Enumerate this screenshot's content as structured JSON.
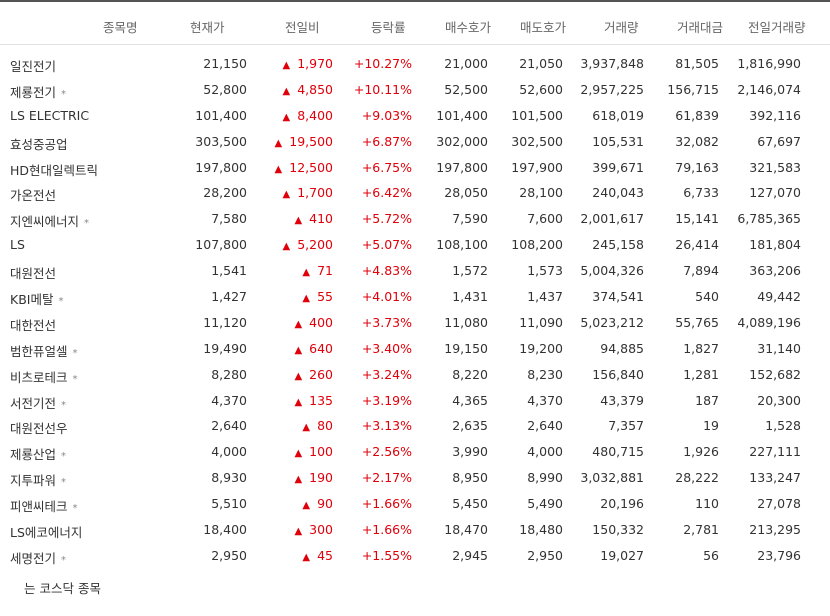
{
  "headers": {
    "name": "종목명",
    "price": "현재가",
    "change": "전일비",
    "rate": "등락률",
    "bid": "매수호가",
    "ask": "매도호가",
    "volume": "거래량",
    "amount": "거래대금",
    "prev_volume": "전일거래량"
  },
  "colors": {
    "up": "#e0000a"
  },
  "icons": {
    "up_arrow": "up-triangle-icon"
  },
  "rows": [
    {
      "name": "일진전기",
      "star": "",
      "price": "21,150",
      "change": "1,970",
      "rate": "+10.27%",
      "bid": "21,000",
      "ask": "21,050",
      "volume": "3,937,848",
      "amount": "81,505",
      "prev_volume": "1,816,990"
    },
    {
      "name": "제룡전기",
      "star": "*",
      "price": "52,800",
      "change": "4,850",
      "rate": "+10.11%",
      "bid": "52,500",
      "ask": "52,600",
      "volume": "2,957,225",
      "amount": "156,715",
      "prev_volume": "2,146,074"
    },
    {
      "name": "LS ELECTRIC",
      "star": "",
      "price": "101,400",
      "change": "8,400",
      "rate": "+9.03%",
      "bid": "101,400",
      "ask": "101,500",
      "volume": "618,019",
      "amount": "61,839",
      "prev_volume": "392,116"
    },
    {
      "name": "효성중공업",
      "star": "",
      "price": "303,500",
      "change": "19,500",
      "rate": "+6.87%",
      "bid": "302,000",
      "ask": "302,500",
      "volume": "105,531",
      "amount": "32,082",
      "prev_volume": "67,697"
    },
    {
      "name": "HD현대일렉트릭",
      "star": "",
      "price": "197,800",
      "change": "12,500",
      "rate": "+6.75%",
      "bid": "197,800",
      "ask": "197,900",
      "volume": "399,671",
      "amount": "79,163",
      "prev_volume": "321,583"
    },
    {
      "name": "가온전선",
      "star": "",
      "price": "28,200",
      "change": "1,700",
      "rate": "+6.42%",
      "bid": "28,050",
      "ask": "28,100",
      "volume": "240,043",
      "amount": "6,733",
      "prev_volume": "127,070"
    },
    {
      "name": "지엔씨에너지",
      "star": "*",
      "price": "7,580",
      "change": "410",
      "rate": "+5.72%",
      "bid": "7,590",
      "ask": "7,600",
      "volume": "2,001,617",
      "amount": "15,141",
      "prev_volume": "6,785,365"
    },
    {
      "name": "LS",
      "star": "",
      "price": "107,800",
      "change": "5,200",
      "rate": "+5.07%",
      "bid": "108,100",
      "ask": "108,200",
      "volume": "245,158",
      "amount": "26,414",
      "prev_volume": "181,804"
    },
    {
      "name": "대원전선",
      "star": "",
      "price": "1,541",
      "change": "71",
      "rate": "+4.83%",
      "bid": "1,572",
      "ask": "1,573",
      "volume": "5,004,326",
      "amount": "7,894",
      "prev_volume": "363,206"
    },
    {
      "name": "KBI메탈",
      "star": "*",
      "price": "1,427",
      "change": "55",
      "rate": "+4.01%",
      "bid": "1,431",
      "ask": "1,437",
      "volume": "374,541",
      "amount": "540",
      "prev_volume": "49,442"
    },
    {
      "name": "대한전선",
      "star": "",
      "price": "11,120",
      "change": "400",
      "rate": "+3.73%",
      "bid": "11,080",
      "ask": "11,090",
      "volume": "5,023,212",
      "amount": "55,765",
      "prev_volume": "4,089,196"
    },
    {
      "name": "범한퓨얼셀",
      "star": "*",
      "price": "19,490",
      "change": "640",
      "rate": "+3.40%",
      "bid": "19,150",
      "ask": "19,200",
      "volume": "94,885",
      "amount": "1,827",
      "prev_volume": "31,140"
    },
    {
      "name": "비츠로테크",
      "star": "*",
      "price": "8,280",
      "change": "260",
      "rate": "+3.24%",
      "bid": "8,220",
      "ask": "8,230",
      "volume": "156,840",
      "amount": "1,281",
      "prev_volume": "152,682"
    },
    {
      "name": "서전기전",
      "star": "*",
      "price": "4,370",
      "change": "135",
      "rate": "+3.19%",
      "bid": "4,365",
      "ask": "4,370",
      "volume": "43,379",
      "amount": "187",
      "prev_volume": "20,300"
    },
    {
      "name": "대원전선우",
      "star": "",
      "price": "2,640",
      "change": "80",
      "rate": "+3.13%",
      "bid": "2,635",
      "ask": "2,640",
      "volume": "7,357",
      "amount": "19",
      "prev_volume": "1,528"
    },
    {
      "name": "제룡산업",
      "star": "*",
      "price": "4,000",
      "change": "100",
      "rate": "+2.56%",
      "bid": "3,990",
      "ask": "4,000",
      "volume": "480,715",
      "amount": "1,926",
      "prev_volume": "227,111"
    },
    {
      "name": "지투파워",
      "star": "*",
      "price": "8,930",
      "change": "190",
      "rate": "+2.17%",
      "bid": "8,950",
      "ask": "8,990",
      "volume": "3,032,881",
      "amount": "28,222",
      "prev_volume": "133,247"
    },
    {
      "name": "피앤씨테크",
      "star": "*",
      "price": "5,510",
      "change": "90",
      "rate": "+1.66%",
      "bid": "5,450",
      "ask": "5,490",
      "volume": "20,196",
      "amount": "110",
      "prev_volume": "27,078"
    },
    {
      "name": "LS에코에너지",
      "star": "",
      "price": "18,400",
      "change": "300",
      "rate": "+1.66%",
      "bid": "18,470",
      "ask": "18,480",
      "volume": "150,332",
      "amount": "2,781",
      "prev_volume": "213,295"
    },
    {
      "name": "세명전기",
      "star": "*",
      "price": "2,950",
      "change": "45",
      "rate": "+1.55%",
      "bid": "2,945",
      "ask": "2,950",
      "volume": "19,027",
      "amount": "56",
      "prev_volume": "23,796"
    }
  ],
  "footnote": "는 코스닥 종목"
}
